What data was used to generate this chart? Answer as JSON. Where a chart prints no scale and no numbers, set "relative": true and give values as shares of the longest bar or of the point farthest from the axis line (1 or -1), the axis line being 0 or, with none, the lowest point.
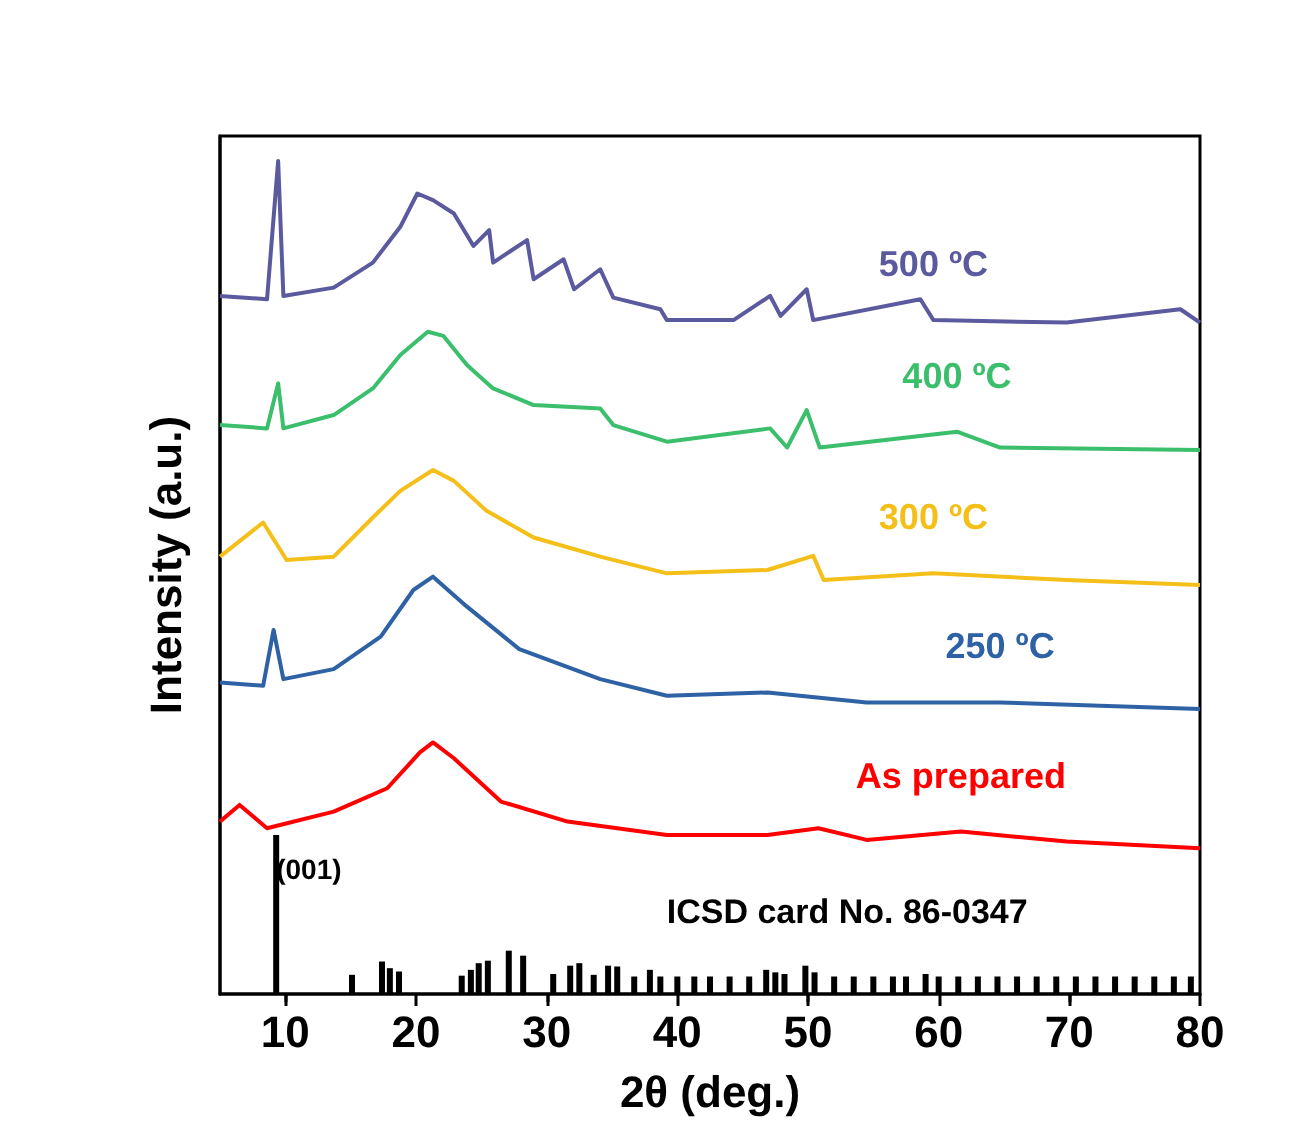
{
  "chart_data": {
    "type": "line",
    "relative": true,
    "xlabel": "2θ (deg.)",
    "ylabel": "Intensity (a.u.)",
    "xlim": [
      5,
      80
    ],
    "xticks": [
      10,
      20,
      30,
      40,
      50,
      60,
      70,
      80
    ],
    "legend": false,
    "grid": false,
    "tick_labels": "x",
    "annotations": [
      {
        "text": "(001)",
        "x": 9.3,
        "y": 0.15
      },
      "ICSD card No. 86-0347"
    ],
    "series": [
      {
        "name": "500 ºC",
        "color": "#5b5a9e",
        "x": [
          5.0,
          8.6,
          9.45,
          9.85,
          13.7,
          16.7,
          18.8,
          20.1,
          21.3,
          22.9,
          24.4,
          25.6,
          25.9,
          28.5,
          29.0,
          31.3,
          32.1,
          34.1,
          35.1,
          38.7,
          39.2,
          44.3,
          47.1,
          47.9,
          49.9,
          50.4,
          58.6,
          59.6,
          69.8,
          78.5,
          80
        ],
        "values": [
          0.838,
          0.834,
          1.0,
          0.838,
          0.848,
          0.878,
          0.921,
          0.961,
          0.953,
          0.937,
          0.898,
          0.917,
          0.878,
          0.905,
          0.858,
          0.882,
          0.846,
          0.87,
          0.836,
          0.822,
          0.809,
          0.809,
          0.838,
          0.814,
          0.846,
          0.809,
          0.834,
          0.809,
          0.806,
          0.822,
          0.806
        ]
      },
      {
        "name": "400 ºC",
        "color": "#3cbf6c",
        "x": [
          5.0,
          8.6,
          9.45,
          9.85,
          13.7,
          16.7,
          18.8,
          20.9,
          22.1,
          23.9,
          25.9,
          29.0,
          34.1,
          35.1,
          39.2,
          47.1,
          48.4,
          49.9,
          50.9,
          61.4,
          64.7,
          80
        ],
        "values": [
          0.683,
          0.679,
          0.733,
          0.679,
          0.695,
          0.727,
          0.767,
          0.795,
          0.79,
          0.755,
          0.727,
          0.707,
          0.703,
          0.683,
          0.663,
          0.679,
          0.656,
          0.701,
          0.656,
          0.675,
          0.656,
          0.653
        ]
      },
      {
        "name": "300 ºC",
        "color": "#f5bf1a",
        "x": [
          5.0,
          8.3,
          10.1,
          13.7,
          16.7,
          18.8,
          21.3,
          22.9,
          25.4,
          29.0,
          34.1,
          39.2,
          46.9,
          50.4,
          51.2,
          59.6,
          69.8,
          80
        ],
        "values": [
          0.525,
          0.566,
          0.521,
          0.525,
          0.572,
          0.604,
          0.629,
          0.616,
          0.58,
          0.548,
          0.525,
          0.505,
          0.509,
          0.526,
          0.497,
          0.505,
          0.497,
          0.491
        ]
      },
      {
        "name": "250 ºC",
        "color": "#2e62a4",
        "x": [
          5.0,
          8.3,
          9.1,
          9.85,
          13.7,
          17.3,
          19.8,
          21.3,
          23.9,
          27.9,
          34.1,
          39.2,
          46.9,
          54.5,
          64.7,
          80
        ],
        "values": [
          0.374,
          0.37,
          0.437,
          0.378,
          0.39,
          0.429,
          0.485,
          0.501,
          0.465,
          0.414,
          0.378,
          0.358,
          0.362,
          0.35,
          0.35,
          0.342
        ]
      },
      {
        "name": "As prepared",
        "color": "#ff0000",
        "x": [
          5.0,
          6.5,
          8.6,
          13.7,
          17.8,
          20.3,
          21.3,
          22.9,
          26.5,
          31.6,
          39.2,
          46.9,
          50.8,
          54.5,
          61.7,
          69.8,
          80
        ],
        "values": [
          0.207,
          0.227,
          0.199,
          0.219,
          0.247,
          0.29,
          0.302,
          0.283,
          0.231,
          0.207,
          0.191,
          0.191,
          0.199,
          0.185,
          0.195,
          0.183,
          0.175
        ]
      },
      {
        "type": "bar",
        "color": "#000000",
        "x": [
          9.3,
          15.1,
          17.4,
          18.0,
          18.7,
          23.5,
          24.2,
          24.8,
          25.5,
          27.1,
          28.2,
          30.5,
          31.8,
          32.5,
          33.6,
          34.7,
          35.4,
          36.7,
          37.9,
          38.7,
          40.0,
          41.3,
          42.5,
          44.0,
          45.5,
          46.8,
          47.5,
          48.2,
          49.8,
          50.5,
          52.0,
          53.5,
          55.0,
          56.5,
          57.5,
          59.0,
          60.0,
          61.5,
          63.0,
          64.5,
          66.0,
          67.5,
          69.0,
          70.5,
          72.0,
          73.5,
          75.0,
          76.5,
          78.0,
          79.3
        ],
        "values": [
          0.191,
          0.023,
          0.039,
          0.031,
          0.027,
          0.022,
          0.029,
          0.037,
          0.04,
          0.052,
          0.046,
          0.024,
          0.034,
          0.037,
          0.023,
          0.034,
          0.033,
          0.021,
          0.029,
          0.021,
          0.021,
          0.021,
          0.021,
          0.021,
          0.021,
          0.029,
          0.026,
          0.024,
          0.034,
          0.026,
          0.021,
          0.021,
          0.021,
          0.021,
          0.021,
          0.024,
          0.021,
          0.021,
          0.021,
          0.021,
          0.021,
          0.021,
          0.021,
          0.021,
          0.021,
          0.021,
          0.021,
          0.021,
          0.021,
          0.021
        ]
      }
    ]
  }
}
